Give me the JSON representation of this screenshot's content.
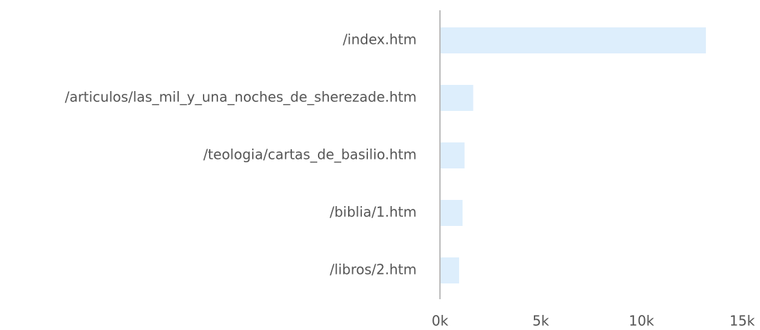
{
  "chart_data": {
    "type": "hbar",
    "categories": [
      "/index.htm",
      "/articulos/las_mil_y_una_noches_de_sherezade.htm",
      "/teologia/cartas_de_basilio.htm",
      "/biblia/1.htm",
      "/libros/2.htm"
    ],
    "values": [
      13200,
      1650,
      1220,
      1120,
      950
    ],
    "color": "#ddeefc",
    "xlim": [
      0,
      15000
    ],
    "xticks": [
      {
        "value": 0,
        "label": "0k"
      },
      {
        "value": 5000,
        "label": "5k"
      },
      {
        "value": 10000,
        "label": "10k"
      },
      {
        "value": 15000,
        "label": "15k"
      }
    ],
    "grid": false
  }
}
